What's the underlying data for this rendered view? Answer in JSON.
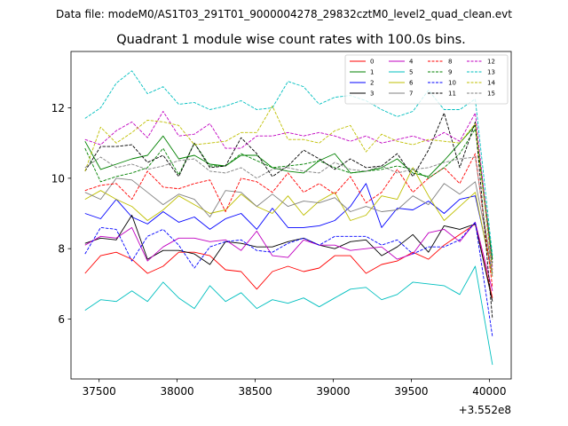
{
  "chart_data": {
    "type": "line",
    "suptitle": "Data file: modeM0/AS1T03_291T01_9000004278_29832cztM0_level2_quad_clean.evt",
    "title": "Quadrant 1 module wise count rates with 100.0s bins.",
    "xlabel": "",
    "ylabel": "",
    "x_offset_label": "+3.552e8",
    "xlim": [
      37320,
      40140
    ],
    "ylim": [
      4.3,
      13.6
    ],
    "xticks": [
      37500,
      38000,
      38500,
      39000,
      39500,
      40000
    ],
    "xtick_labels": [
      "37500",
      "38000",
      "38500",
      "39000",
      "39500",
      "40000"
    ],
    "yticks": [
      6,
      8,
      10,
      12
    ],
    "ytick_labels": [
      "6",
      "8",
      "10",
      "12"
    ],
    "legend_location": "top-right",
    "legend_columns": 4,
    "x": [
      37410,
      37510,
      37610,
      37710,
      37810,
      37910,
      38010,
      38110,
      38210,
      38310,
      38410,
      38510,
      38610,
      38710,
      38810,
      38910,
      39010,
      39110,
      39210,
      39310,
      39410,
      39510,
      39610,
      39710,
      39810,
      39910,
      40020
    ],
    "series": [
      {
        "name": "0",
        "color": "#ff0000",
        "dashed": false,
        "values": [
          7.3,
          7.8,
          7.9,
          7.7,
          7.3,
          7.5,
          7.9,
          7.9,
          7.8,
          7.4,
          7.35,
          6.85,
          7.35,
          7.5,
          7.35,
          7.45,
          7.8,
          7.8,
          7.3,
          7.55,
          7.65,
          7.9,
          7.7,
          8.1,
          8.4,
          8.7,
          6.6
        ]
      },
      {
        "name": "1",
        "color": "#008000",
        "dashed": false,
        "values": [
          11.05,
          10.25,
          10.4,
          10.55,
          10.65,
          11.2,
          10.55,
          10.65,
          10.4,
          10.35,
          10.65,
          10.65,
          10.3,
          10.2,
          10.15,
          10.5,
          10.7,
          10.15,
          10.2,
          10.3,
          10.55,
          10.15,
          10.05,
          10.5,
          11.0,
          11.5,
          7.7
        ]
      },
      {
        "name": "2",
        "color": "#0000ff",
        "dashed": false,
        "values": [
          9.0,
          8.85,
          9.4,
          8.9,
          8.7,
          9.05,
          8.75,
          8.9,
          8.55,
          8.85,
          9.0,
          8.55,
          9.15,
          8.6,
          8.6,
          8.65,
          8.8,
          9.2,
          9.85,
          8.6,
          9.15,
          9.1,
          9.35,
          9.0,
          9.4,
          9.5,
          7.3
        ]
      },
      {
        "name": "3",
        "color": "#000000",
        "dashed": false,
        "values": [
          8.15,
          8.3,
          8.25,
          8.95,
          7.7,
          7.95,
          7.95,
          7.85,
          7.55,
          8.2,
          8.15,
          8.05,
          8.05,
          8.2,
          8.3,
          8.1,
          8.0,
          8.2,
          8.25,
          7.8,
          8.05,
          8.4,
          7.9,
          8.65,
          8.55,
          8.7,
          6.5
        ]
      },
      {
        "name": "4",
        "color": "#c000c0",
        "dashed": false,
        "values": [
          8.1,
          8.35,
          8.3,
          8.6,
          7.65,
          8.05,
          8.3,
          8.3,
          8.2,
          8.25,
          7.95,
          8.5,
          7.8,
          7.75,
          8.25,
          8.1,
          8.1,
          7.95,
          8.0,
          8.05,
          7.7,
          7.85,
          8.45,
          8.55,
          8.2,
          8.75,
          6.8
        ]
      },
      {
        "name": "5",
        "color": "#00bfbf",
        "dashed": false,
        "values": [
          6.25,
          6.55,
          6.5,
          6.8,
          6.5,
          7.05,
          6.6,
          6.3,
          6.95,
          6.5,
          6.75,
          6.3,
          6.55,
          6.45,
          6.6,
          6.35,
          6.6,
          6.85,
          6.9,
          6.55,
          6.7,
          7.05,
          7.0,
          6.95,
          6.7,
          7.5,
          4.7
        ]
      },
      {
        "name": "6",
        "color": "#bfbf00",
        "dashed": false,
        "values": [
          9.4,
          9.65,
          9.4,
          9.2,
          8.8,
          9.1,
          9.5,
          9.25,
          9.0,
          9.1,
          9.55,
          9.2,
          9.0,
          9.5,
          8.95,
          9.35,
          9.6,
          8.8,
          8.95,
          9.5,
          9.4,
          10.3,
          9.5,
          8.8,
          9.2,
          9.6,
          7.2
        ]
      },
      {
        "name": "7",
        "color": "#808080",
        "dashed": false,
        "values": [
          9.6,
          9.4,
          10.0,
          9.95,
          9.6,
          9.25,
          9.55,
          9.4,
          8.9,
          9.65,
          9.6,
          9.2,
          9.55,
          9.2,
          9.35,
          9.3,
          9.45,
          9.05,
          9.2,
          9.05,
          9.1,
          9.5,
          9.25,
          9.85,
          9.55,
          9.9,
          7.5
        ]
      },
      {
        "name": "8",
        "color": "#ff0000",
        "dashed": true,
        "values": [
          9.65,
          9.8,
          9.85,
          9.4,
          10.2,
          9.75,
          9.7,
          9.85,
          9.95,
          9.05,
          10.0,
          9.9,
          9.6,
          10.15,
          9.6,
          9.85,
          9.55,
          10.05,
          9.3,
          9.6,
          10.25,
          9.6,
          10.0,
          10.3,
          9.85,
          10.7,
          6.9
        ]
      },
      {
        "name": "9",
        "color": "#008000",
        "dashed": true,
        "values": [
          10.85,
          9.9,
          10.05,
          10.15,
          10.3,
          10.85,
          10.1,
          11.0,
          10.35,
          10.35,
          10.7,
          10.5,
          10.3,
          10.35,
          10.4,
          10.5,
          10.3,
          10.15,
          10.2,
          10.25,
          10.35,
          10.25,
          10.0,
          10.3,
          10.7,
          11.4,
          7.6
        ]
      },
      {
        "name": "10",
        "color": "#0000ff",
        "dashed": true,
        "values": [
          7.85,
          8.6,
          8.55,
          7.65,
          8.35,
          8.55,
          8.1,
          7.45,
          8.05,
          8.2,
          8.25,
          7.95,
          7.9,
          8.15,
          8.3,
          8.1,
          8.35,
          8.35,
          8.35,
          8.1,
          8.25,
          7.85,
          8.05,
          8.05,
          8.25,
          8.75,
          5.5
        ]
      },
      {
        "name": "11",
        "color": "#000000",
        "dashed": true,
        "values": [
          10.2,
          10.9,
          10.9,
          10.95,
          10.45,
          10.65,
          10.05,
          11.0,
          10.3,
          10.35,
          11.15,
          10.7,
          10.05,
          10.35,
          10.8,
          10.55,
          10.25,
          10.55,
          10.3,
          10.35,
          10.7,
          10.05,
          10.8,
          11.85,
          10.3,
          11.6,
          6.0
        ]
      },
      {
        "name": "12",
        "color": "#c000c0",
        "dashed": true,
        "values": [
          11.1,
          10.95,
          11.35,
          11.6,
          11.15,
          11.9,
          11.2,
          11.25,
          11.55,
          10.85,
          10.85,
          11.2,
          11.2,
          11.3,
          11.2,
          11.3,
          11.2,
          11.05,
          11.2,
          11.0,
          11.1,
          11.2,
          11.05,
          11.3,
          11.05,
          11.85,
          7.4
        ]
      },
      {
        "name": "13",
        "color": "#00bfbf",
        "dashed": true,
        "values": [
          11.7,
          12.0,
          12.7,
          13.05,
          12.4,
          12.6,
          12.1,
          12.15,
          11.95,
          12.05,
          12.2,
          11.95,
          12.0,
          12.75,
          12.6,
          12.1,
          12.3,
          12.35,
          12.2,
          11.95,
          11.75,
          11.9,
          12.5,
          11.95,
          11.95,
          12.25,
          7.8
        ]
      },
      {
        "name": "14",
        "color": "#bfbf00",
        "dashed": true,
        "values": [
          10.2,
          11.45,
          11.0,
          11.3,
          11.65,
          11.6,
          11.5,
          10.95,
          11.0,
          11.05,
          11.3,
          11.3,
          12.05,
          11.1,
          11.1,
          11.0,
          11.35,
          11.5,
          10.75,
          11.25,
          11.05,
          10.95,
          11.1,
          11.05,
          11.0,
          11.55,
          7.3
        ]
      },
      {
        "name": "15",
        "color": "#808080",
        "dashed": true,
        "values": [
          10.3,
          10.6,
          10.3,
          10.4,
          10.25,
          10.35,
          10.5,
          10.55,
          10.2,
          10.15,
          10.3,
          10.0,
          10.25,
          10.3,
          10.2,
          10.15,
          10.45,
          10.25,
          10.2,
          10.35,
          10.15,
          10.25,
          10.3,
          10.45,
          10.55,
          10.6,
          7.2
        ]
      }
    ]
  }
}
